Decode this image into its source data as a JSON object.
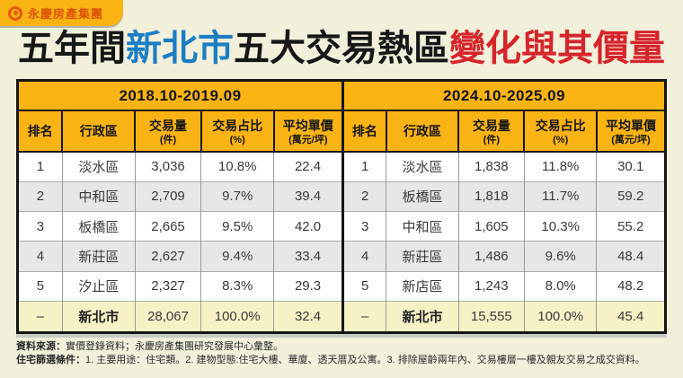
{
  "brand": {
    "name": "永慶房產集團"
  },
  "title": {
    "seg_black_1": "五年間",
    "seg_blue": "新北市",
    "seg_black_2": "五大交易熱區",
    "seg_red": "變化與其價量"
  },
  "colors": {
    "brand_yellow": "#F9B414",
    "logo_orange": "#E8560A",
    "title_blue": "#1B7EC4",
    "title_red": "#D5252B",
    "page_cream": "#F2EFDB",
    "row_gray": "#E7E7E7",
    "total_row_yellow": "#F7F1C6"
  },
  "chart_data": [
    {
      "type": "table",
      "title": "2018.10-2019.09",
      "columns": [
        {
          "label": "排名",
          "sub": ""
        },
        {
          "label": "行政區",
          "sub": ""
        },
        {
          "label": "交易量",
          "sub": "(件)"
        },
        {
          "label": "交易占比",
          "sub": "(%)"
        },
        {
          "label": "平均單價",
          "sub": "(萬元/坪)"
        }
      ],
      "rows": [
        [
          "1",
          "淡水區",
          "3,036",
          "10.8%",
          "22.4"
        ],
        [
          "2",
          "中和區",
          "2,709",
          "9.7%",
          "39.4"
        ],
        [
          "3",
          "板橋區",
          "2,665",
          "9.5%",
          "42.0"
        ],
        [
          "4",
          "新莊區",
          "2,627",
          "9.4%",
          "33.4"
        ],
        [
          "5",
          "汐止區",
          "2,327",
          "8.3%",
          "29.3"
        ]
      ],
      "total": [
        "–",
        "新北市",
        "28,067",
        "100.0%",
        "32.4"
      ]
    },
    {
      "type": "table",
      "title": "2024.10-2025.09",
      "columns": [
        {
          "label": "排名",
          "sub": ""
        },
        {
          "label": "行政區",
          "sub": ""
        },
        {
          "label": "交易量",
          "sub": "(件)"
        },
        {
          "label": "交易占比",
          "sub": "(%)"
        },
        {
          "label": "平均單價",
          "sub": "(萬元/坪)"
        }
      ],
      "rows": [
        [
          "1",
          "淡水區",
          "1,838",
          "11.8%",
          "30.1"
        ],
        [
          "2",
          "板橋區",
          "1,818",
          "11.7%",
          "59.2"
        ],
        [
          "3",
          "中和區",
          "1,605",
          "10.3%",
          "55.2"
        ],
        [
          "4",
          "新莊區",
          "1,486",
          "9.6%",
          "48.4"
        ],
        [
          "5",
          "新店區",
          "1,243",
          "8.0%",
          "48.2"
        ]
      ],
      "total": [
        "–",
        "新北市",
        "15,555",
        "100.0%",
        "45.4"
      ]
    }
  ],
  "footer": {
    "source_label": "資料來源：",
    "source_text": "實價登錄資料；永慶房產集團研究發展中心彙整。",
    "criteria_label": "住宅篩選條件：",
    "criteria_text": "1. 主要用途：住宅類。2. 建物型態:住宅大樓、華廈、透天厝及公寓。3. 排除屋齡兩年內、交易樓層一樓及親友交易之成交資料。"
  }
}
